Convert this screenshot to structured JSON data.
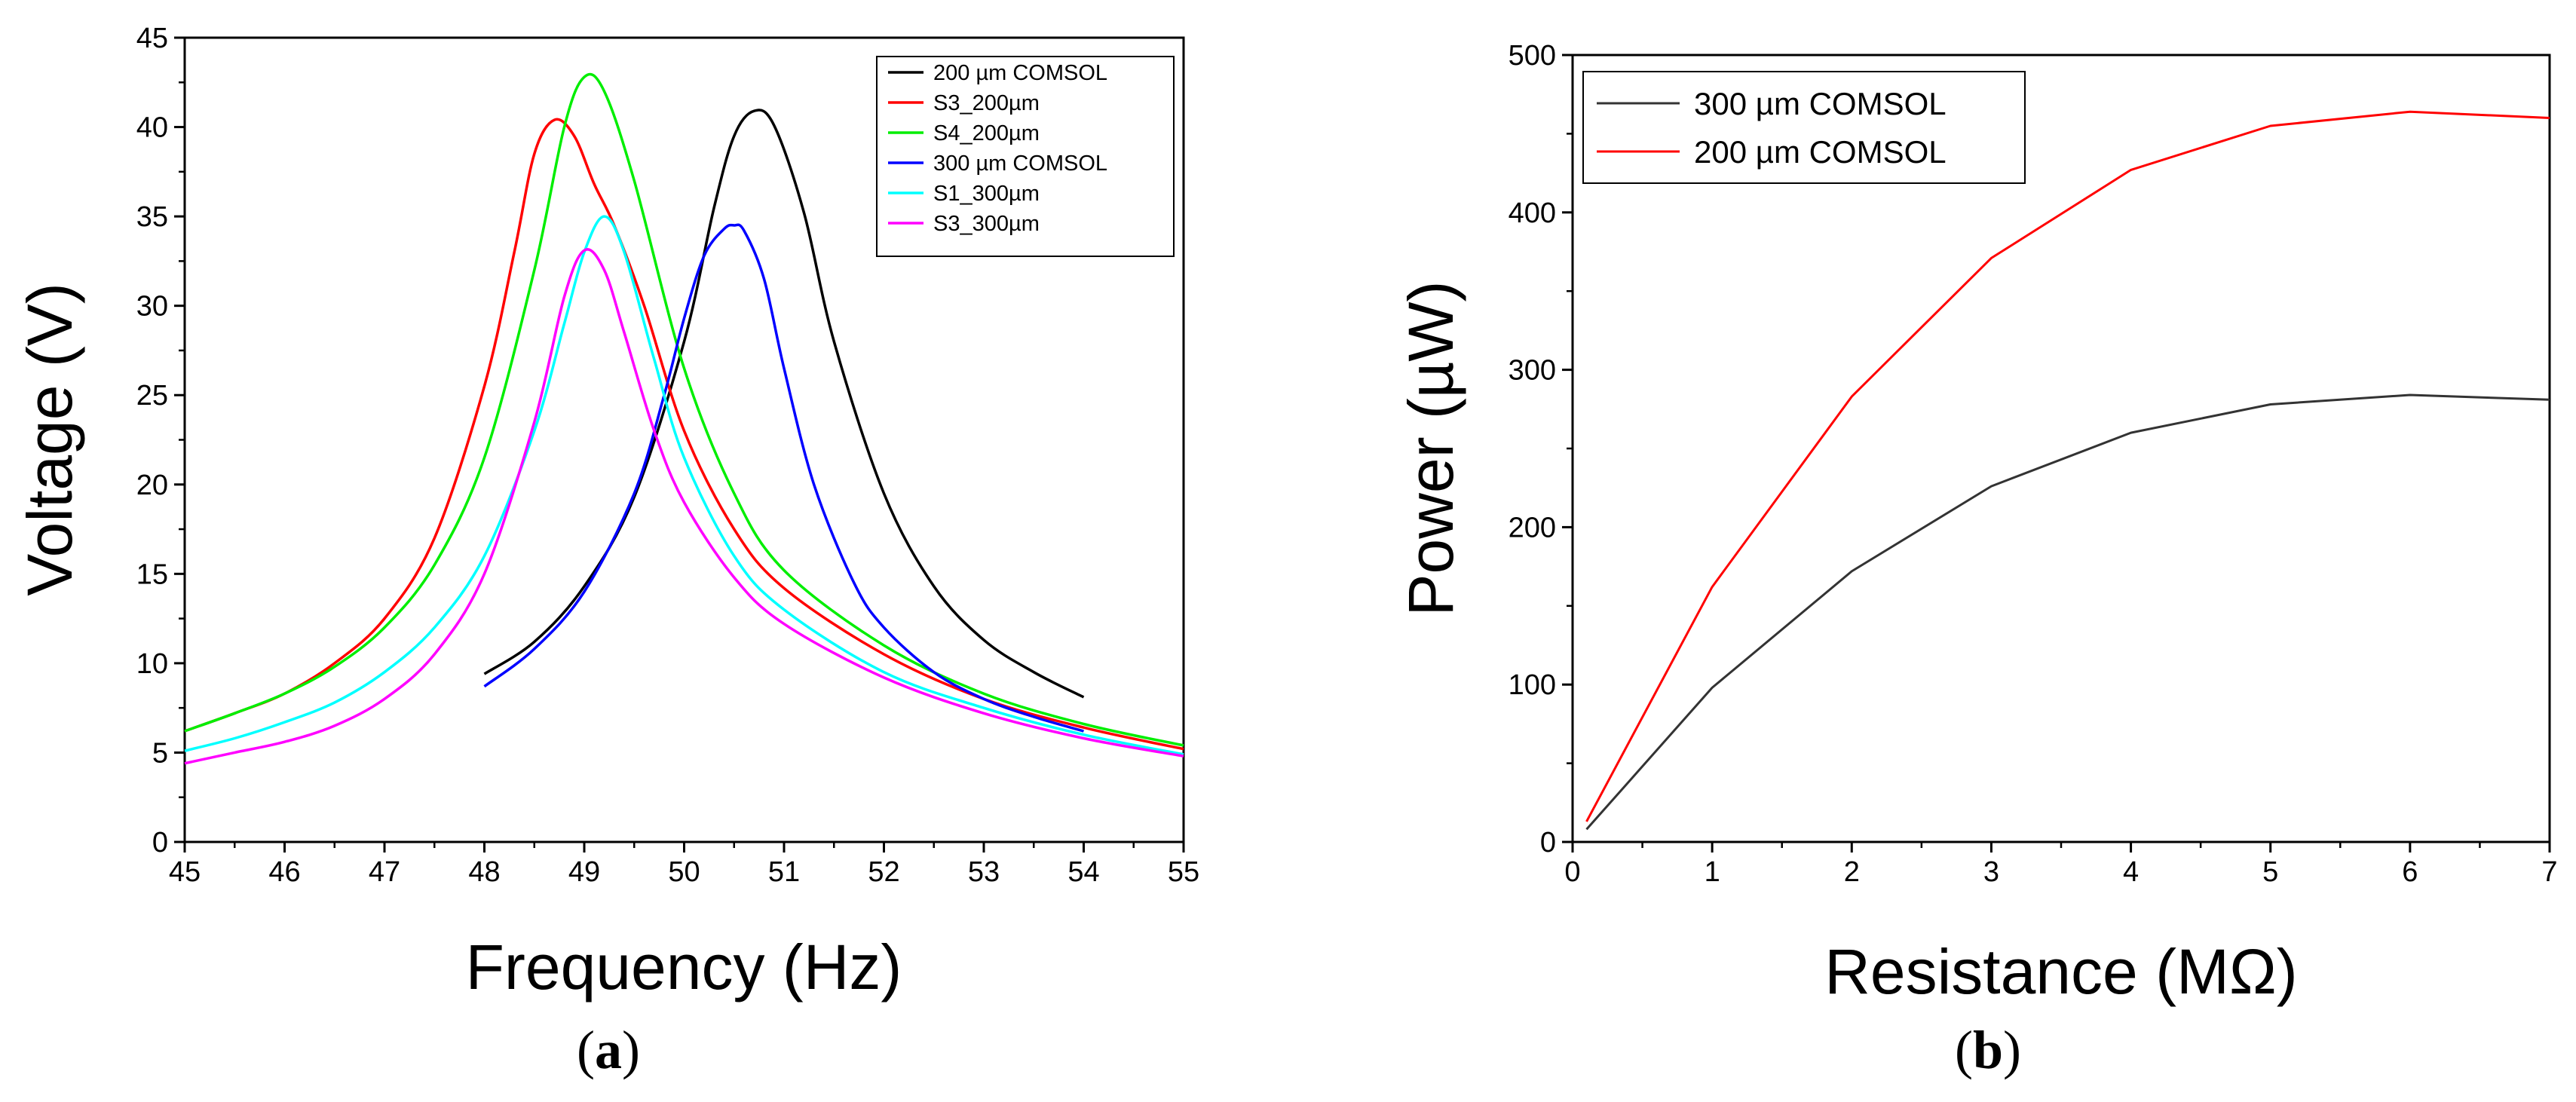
{
  "chart_data": [
    {
      "panel": "(a)",
      "panel_letter": "a",
      "type": "line",
      "xlabel": "Frequency (Hz)",
      "ylabel": "Voltage (V)",
      "xlim": [
        45,
        55
      ],
      "ylim": [
        0,
        45
      ],
      "xticks": [
        45,
        46,
        47,
        48,
        49,
        50,
        51,
        52,
        53,
        54,
        55
      ],
      "yticks": [
        0,
        5,
        10,
        15,
        20,
        25,
        30,
        35,
        40,
        45
      ],
      "legend_position": "top-right",
      "series": [
        {
          "name": "200 µm COMSOL",
          "color": "#000000",
          "x": [
            48,
            48.5,
            49,
            49.5,
            50,
            50.3,
            50.5,
            50.7,
            50.9,
            51.2,
            51.5,
            52,
            52.5,
            53,
            53.5,
            54
          ],
          "y": [
            9.4,
            11.2,
            14.3,
            19.3,
            28,
            35.5,
            39.5,
            40.9,
            40.1,
            35.2,
            28,
            19.5,
            14.3,
            11.3,
            9.5,
            8.1
          ]
        },
        {
          "name": "S3_200µm",
          "color": "#ff0000",
          "x": [
            45,
            45.5,
            46,
            46.5,
            47,
            47.5,
            48,
            48.3,
            48.5,
            48.7,
            48.9,
            49.1,
            49.3,
            49.6,
            50,
            50.5,
            51,
            52,
            53,
            54,
            55
          ],
          "y": [
            6.2,
            7.2,
            8.3,
            10,
            12.5,
            17,
            25.5,
            33,
            38.5,
            40.4,
            39.5,
            36.8,
            34.5,
            30,
            23,
            17.5,
            14.2,
            10.5,
            8,
            6.4,
            5.2
          ]
        },
        {
          "name": "S4_200µm",
          "color": "#00ee00",
          "x": [
            45,
            45.5,
            46,
            46.5,
            47,
            47.5,
            48,
            48.5,
            48.8,
            49,
            49.2,
            49.5,
            50,
            50.5,
            51,
            52,
            53,
            54,
            55
          ],
          "y": [
            6.2,
            7.2,
            8.3,
            9.8,
            12,
            15.5,
            21.5,
            32,
            40,
            42.8,
            42,
            37,
            26.5,
            19.5,
            15.2,
            11,
            8.3,
            6.6,
            5.4
          ]
        },
        {
          "name": "300 µm COMSOL",
          "color": "#0000ff",
          "x": [
            48,
            48.5,
            49,
            49.5,
            49.8,
            50,
            50.2,
            50.4,
            50.5,
            50.6,
            50.8,
            51,
            51.3,
            51.7,
            52,
            52.5,
            53,
            53.5,
            54
          ],
          "y": [
            8.7,
            10.8,
            14,
            19.5,
            25,
            29.3,
            32.8,
            34.3,
            34.5,
            34.2,
            31.5,
            26.5,
            20,
            14.5,
            12,
            9.5,
            8,
            7,
            6.2
          ]
        },
        {
          "name": "S1_300µm",
          "color": "#00ffff",
          "x": [
            45,
            45.5,
            46,
            46.5,
            47,
            47.5,
            48,
            48.5,
            48.8,
            49,
            49.2,
            49.4,
            49.7,
            50,
            50.5,
            51,
            52,
            53,
            54,
            55
          ],
          "y": [
            5.1,
            5.8,
            6.7,
            7.8,
            9.5,
            12,
            16,
            23,
            29,
            33,
            35,
            33,
            27,
            21.5,
            16,
            13,
            9.5,
            7.5,
            6,
            4.9
          ]
        },
        {
          "name": "S3_300µm",
          "color": "#ff00ff",
          "x": [
            45,
            45.5,
            46,
            46.5,
            47,
            47.5,
            48,
            48.5,
            48.8,
            49,
            49.2,
            49.4,
            49.7,
            50,
            50.5,
            51,
            52,
            53,
            54,
            55
          ],
          "y": [
            4.4,
            5,
            5.6,
            6.5,
            8,
            10.5,
            15,
            23.5,
            30.5,
            33.1,
            32,
            28.5,
            23,
            19,
            14.8,
            12.2,
            9.2,
            7.2,
            5.8,
            4.8
          ]
        }
      ]
    },
    {
      "panel": "(b)",
      "panel_letter": "b",
      "type": "line",
      "xlabel": "Resistance (MΩ)",
      "ylabel": "Power (µW)",
      "xlim": [
        0,
        7
      ],
      "ylim": [
        0,
        500
      ],
      "xticks": [
        0,
        1,
        2,
        3,
        4,
        5,
        6,
        7
      ],
      "yticks": [
        0,
        100,
        200,
        300,
        400,
        500
      ],
      "legend_position": "top-left",
      "series": [
        {
          "name": "300 µm COMSOL",
          "color": "#333333",
          "x": [
            0.1,
            1,
            2,
            3,
            4,
            5,
            6,
            7
          ],
          "y": [
            8,
            98,
            172,
            226,
            260,
            278,
            284,
            281
          ]
        },
        {
          "name": "200 µm COMSOL",
          "color": "#ff0000",
          "x": [
            0.1,
            1,
            2,
            3,
            4,
            5,
            6,
            7
          ],
          "y": [
            13,
            162,
            283,
            371,
            427,
            455,
            464,
            460
          ]
        }
      ]
    }
  ]
}
